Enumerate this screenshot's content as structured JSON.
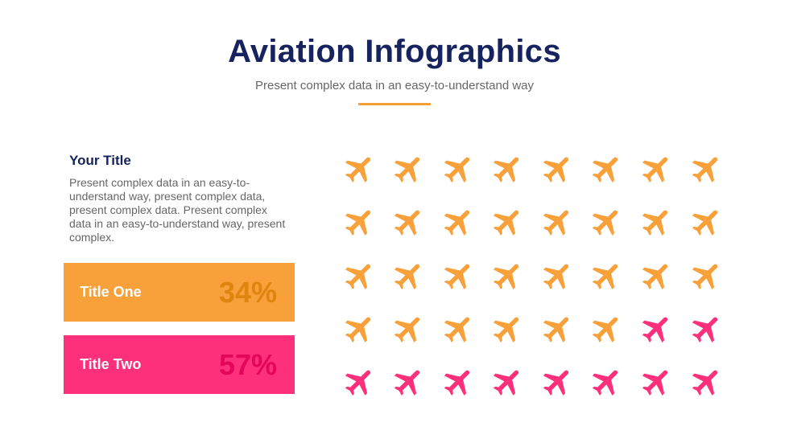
{
  "header": {
    "title": "Aviation Infographics",
    "subtitle": "Present complex data in an easy-to-understand way"
  },
  "section": {
    "title": "Your Title",
    "body": "Present complex data in an easy-to-understand way, present complex data, present complex data. Present complex data in an easy-to-understand way, present complex."
  },
  "stats": [
    {
      "label": "Title One",
      "value": "34%",
      "color": "#f8a03a"
    },
    {
      "label": "Title Two",
      "value": "57%",
      "color": "#fe2f7b"
    }
  ],
  "icon_grid": {
    "icon": "airplane-icon",
    "columns": 8,
    "rows": 5,
    "total": 40,
    "orange_count": 30,
    "pink_count": 10,
    "colors": {
      "orange": "#f8a03a",
      "pink": "#fe2f7b"
    }
  }
}
